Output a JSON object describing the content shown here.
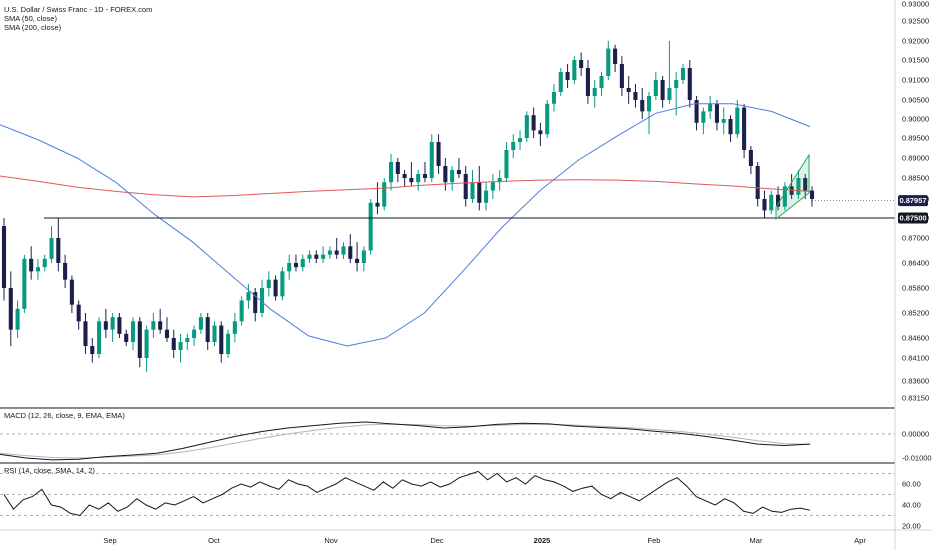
{
  "legend": {
    "title": "U.S. Dollar / Swiss Franc - 1D - FOREX.com",
    "sma50": "SMA (50, close)",
    "sma200": "SMA (200, close)"
  },
  "macd_label": "MACD (12, 26, close, 9, EMA, EMA)",
  "rsi_label": "RSI (14, close, SMA, 14, 2)",
  "price_tags": {
    "last": "0.87957",
    "level": "0.87500"
  },
  "colors": {
    "bull": "#089981",
    "bear": "#1c1f4a",
    "sma50": "#4c7fdc",
    "sma200": "#e05a5a",
    "channel": "#26a65b",
    "level": "#131722"
  },
  "chart_data": {
    "type": "candlestick",
    "x_ticks": [
      "Sep",
      "Oct",
      "Nov",
      "Dec",
      "2025",
      "Feb",
      "Mar",
      "Apr"
    ],
    "y_ticks": [
      "0.93000",
      "0.92500",
      "0.92000",
      "0.91500",
      "0.91000",
      "0.90500",
      "0.90000",
      "0.89500",
      "0.89000",
      "0.88500",
      "0.88000",
      "0.87500",
      "0.87000",
      "0.86400",
      "0.85800",
      "0.85200",
      "0.84600",
      "0.84100",
      "0.83600",
      "0.83150"
    ],
    "ylim": [
      0.8315,
      0.93
    ],
    "support_level": 0.875,
    "last_price": 0.87957,
    "candles": [
      [
        0.873,
        0.875,
        0.855,
        0.858
      ],
      [
        0.858,
        0.862,
        0.844,
        0.848
      ],
      [
        0.848,
        0.855,
        0.846,
        0.853
      ],
      [
        0.853,
        0.866,
        0.852,
        0.865
      ],
      [
        0.865,
        0.868,
        0.86,
        0.862
      ],
      [
        0.862,
        0.865,
        0.86,
        0.863
      ],
      [
        0.863,
        0.866,
        0.862,
        0.865
      ],
      [
        0.865,
        0.873,
        0.864,
        0.87
      ],
      [
        0.87,
        0.875,
        0.862,
        0.864
      ],
      [
        0.864,
        0.866,
        0.858,
        0.86
      ],
      [
        0.86,
        0.861,
        0.852,
        0.854
      ],
      [
        0.854,
        0.855,
        0.848,
        0.85
      ],
      [
        0.85,
        0.852,
        0.842,
        0.844
      ],
      [
        0.844,
        0.846,
        0.84,
        0.842
      ],
      [
        0.842,
        0.851,
        0.841,
        0.85
      ],
      [
        0.85,
        0.853,
        0.846,
        0.848
      ],
      [
        0.848,
        0.852,
        0.845,
        0.851
      ],
      [
        0.851,
        0.852,
        0.846,
        0.847
      ],
      [
        0.847,
        0.848,
        0.844,
        0.845
      ],
      [
        0.845,
        0.851,
        0.843,
        0.85
      ],
      [
        0.85,
        0.851,
        0.839,
        0.841
      ],
      [
        0.841,
        0.849,
        0.838,
        0.848
      ],
      [
        0.848,
        0.852,
        0.846,
        0.85
      ],
      [
        0.85,
        0.853,
        0.847,
        0.848
      ],
      [
        0.848,
        0.851,
        0.845,
        0.846
      ],
      [
        0.846,
        0.848,
        0.841,
        0.843
      ],
      [
        0.843,
        0.847,
        0.84,
        0.845
      ],
      [
        0.845,
        0.847,
        0.843,
        0.846
      ],
      [
        0.846,
        0.849,
        0.844,
        0.848
      ],
      [
        0.848,
        0.852,
        0.847,
        0.851
      ],
      [
        0.851,
        0.852,
        0.843,
        0.845
      ],
      [
        0.845,
        0.85,
        0.844,
        0.849
      ],
      [
        0.849,
        0.85,
        0.84,
        0.842
      ],
      [
        0.842,
        0.848,
        0.841,
        0.847
      ],
      [
        0.847,
        0.852,
        0.845,
        0.85
      ],
      [
        0.85,
        0.856,
        0.849,
        0.855
      ],
      [
        0.855,
        0.859,
        0.853,
        0.857
      ],
      [
        0.857,
        0.858,
        0.85,
        0.852
      ],
      [
        0.852,
        0.86,
        0.851,
        0.858
      ],
      [
        0.858,
        0.862,
        0.856,
        0.86
      ],
      [
        0.86,
        0.861,
        0.855,
        0.856
      ],
      [
        0.856,
        0.863,
        0.855,
        0.862
      ],
      [
        0.862,
        0.866,
        0.86,
        0.864
      ],
      [
        0.864,
        0.866,
        0.862,
        0.863
      ],
      [
        0.863,
        0.866,
        0.862,
        0.865
      ],
      [
        0.865,
        0.867,
        0.864,
        0.866
      ],
      [
        0.866,
        0.867,
        0.864,
        0.865
      ],
      [
        0.865,
        0.868,
        0.864,
        0.866
      ],
      [
        0.866,
        0.868,
        0.865,
        0.867
      ],
      [
        0.867,
        0.87,
        0.865,
        0.866
      ],
      [
        0.866,
        0.869,
        0.865,
        0.868
      ],
      [
        0.868,
        0.871,
        0.864,
        0.865
      ],
      [
        0.865,
        0.869,
        0.862,
        0.864
      ],
      [
        0.864,
        0.868,
        0.862,
        0.867
      ],
      [
        0.867,
        0.88,
        0.866,
        0.879
      ],
      [
        0.879,
        0.884,
        0.876,
        0.878
      ],
      [
        0.878,
        0.885,
        0.877,
        0.884
      ],
      [
        0.884,
        0.891,
        0.882,
        0.889
      ],
      [
        0.889,
        0.89,
        0.884,
        0.886
      ],
      [
        0.886,
        0.887,
        0.883,
        0.885
      ],
      [
        0.885,
        0.889,
        0.883,
        0.884
      ],
      [
        0.884,
        0.887,
        0.882,
        0.886
      ],
      [
        0.886,
        0.889,
        0.884,
        0.885
      ],
      [
        0.885,
        0.896,
        0.884,
        0.894
      ],
      [
        0.894,
        0.896,
        0.886,
        0.888
      ],
      [
        0.888,
        0.89,
        0.882,
        0.884
      ],
      [
        0.884,
        0.888,
        0.882,
        0.887
      ],
      [
        0.887,
        0.89,
        0.885,
        0.886
      ],
      [
        0.886,
        0.888,
        0.878,
        0.88
      ],
      [
        0.88,
        0.887,
        0.879,
        0.884
      ],
      [
        0.884,
        0.888,
        0.877,
        0.879
      ],
      [
        0.879,
        0.884,
        0.877,
        0.882
      ],
      [
        0.882,
        0.886,
        0.88,
        0.884
      ],
      [
        0.884,
        0.887,
        0.882,
        0.885
      ],
      [
        0.885,
        0.894,
        0.884,
        0.892
      ],
      [
        0.892,
        0.896,
        0.89,
        0.894
      ],
      [
        0.894,
        0.897,
        0.892,
        0.895
      ],
      [
        0.895,
        0.902,
        0.894,
        0.901
      ],
      [
        0.901,
        0.903,
        0.895,
        0.897
      ],
      [
        0.897,
        0.899,
        0.893,
        0.896
      ],
      [
        0.896,
        0.905,
        0.895,
        0.904
      ],
      [
        0.904,
        0.909,
        0.902,
        0.907
      ],
      [
        0.907,
        0.913,
        0.906,
        0.912
      ],
      [
        0.912,
        0.914,
        0.908,
        0.91
      ],
      [
        0.91,
        0.916,
        0.909,
        0.915
      ],
      [
        0.915,
        0.917,
        0.911,
        0.913
      ],
      [
        0.913,
        0.915,
        0.904,
        0.906
      ],
      [
        0.906,
        0.91,
        0.903,
        0.908
      ],
      [
        0.908,
        0.912,
        0.906,
        0.911
      ],
      [
        0.911,
        0.92,
        0.91,
        0.918
      ],
      [
        0.918,
        0.919,
        0.912,
        0.914
      ],
      [
        0.914,
        0.916,
        0.906,
        0.908
      ],
      [
        0.908,
        0.911,
        0.904,
        0.907
      ],
      [
        0.907,
        0.909,
        0.903,
        0.905
      ],
      [
        0.905,
        0.908,
        0.9,
        0.902
      ],
      [
        0.902,
        0.907,
        0.896,
        0.906
      ],
      [
        0.906,
        0.912,
        0.905,
        0.91
      ],
      [
        0.91,
        0.911,
        0.903,
        0.905
      ],
      [
        0.905,
        0.92,
        0.904,
        0.908
      ],
      [
        0.908,
        0.912,
        0.901,
        0.91
      ],
      [
        0.91,
        0.914,
        0.909,
        0.913
      ],
      [
        0.913,
        0.915,
        0.903,
        0.905
      ],
      [
        0.905,
        0.906,
        0.897,
        0.899
      ],
      [
        0.899,
        0.903,
        0.896,
        0.902
      ],
      [
        0.902,
        0.906,
        0.9,
        0.904
      ],
      [
        0.904,
        0.905,
        0.897,
        0.899
      ],
      [
        0.899,
        0.903,
        0.896,
        0.9
      ],
      [
        0.9,
        0.901,
        0.894,
        0.896
      ],
      [
        0.896,
        0.905,
        0.895,
        0.903
      ],
      [
        0.903,
        0.904,
        0.89,
        0.892
      ],
      [
        0.892,
        0.893,
        0.886,
        0.888
      ],
      [
        0.888,
        0.889,
        0.878,
        0.88
      ],
      [
        0.88,
        0.882,
        0.875,
        0.877
      ],
      [
        0.877,
        0.882,
        0.876,
        0.881
      ],
      [
        0.881,
        0.883,
        0.877,
        0.878
      ],
      [
        0.878,
        0.884,
        0.877,
        0.883
      ],
      [
        0.883,
        0.886,
        0.88,
        0.881
      ],
      [
        0.881,
        0.887,
        0.88,
        0.885
      ],
      [
        0.885,
        0.886,
        0.88,
        0.882
      ],
      [
        0.882,
        0.883,
        0.878,
        0.88
      ]
    ],
    "sma50": [
      0.8985,
      0.8945,
      0.89,
      0.884,
      0.876,
      0.869,
      0.861,
      0.853,
      0.8465,
      0.844,
      0.846,
      0.852,
      0.862,
      0.8725,
      0.882,
      0.8895,
      0.8955,
      0.9015,
      0.904,
      0.904,
      0.902,
      0.898
    ],
    "sma200": [
      0.8855,
      0.8842,
      0.8828,
      0.8818,
      0.881,
      0.8805,
      0.8808,
      0.8813,
      0.8818,
      0.8822,
      0.8826,
      0.8833,
      0.8838,
      0.8842,
      0.8845,
      0.8846,
      0.8845,
      0.8842,
      0.8836,
      0.8831,
      0.8824,
      0.8818
    ],
    "macd": {
      "label": "MACD (12, 26, close, 9, EMA, EMA)",
      "ylim": [
        -0.012,
        0.006
      ],
      "ticks": [
        "0.00000",
        "-0.01000"
      ],
      "macd_line": [
        -0.0085,
        -0.01,
        -0.0108,
        -0.0105,
        -0.0095,
        -0.0088,
        -0.008,
        -0.006,
        -0.0035,
        -0.001,
        0.001,
        0.0025,
        0.0035,
        0.0045,
        0.005,
        0.0042,
        0.0035,
        0.0025,
        0.003,
        0.004,
        0.0045,
        0.0042,
        0.0033,
        0.0027,
        0.0022,
        0.0012,
        0.0003,
        -0.001,
        -0.0025,
        -0.0042,
        -0.0048,
        -0.0042
      ],
      "signal_line": [
        -0.008,
        -0.009,
        -0.0098,
        -0.01,
        -0.0097,
        -0.0092,
        -0.0087,
        -0.0075,
        -0.0058,
        -0.0038,
        -0.0018,
        0.0,
        0.0015,
        0.0028,
        0.0038,
        0.0041,
        0.0039,
        0.0034,
        0.0033,
        0.0036,
        0.004,
        0.0041,
        0.0037,
        0.0032,
        0.0027,
        0.0019,
        0.0011,
        0.0,
        -0.0013,
        -0.0028,
        -0.004,
        -0.0043
      ]
    },
    "rsi": {
      "label": "RSI (14, close, SMA, 14, 2)",
      "ylim": [
        20,
        75
      ],
      "ticks": [
        "60.00",
        "40.00",
        "20.00"
      ],
      "bands": [
        70,
        50,
        30
      ],
      "values": [
        50,
        36,
        45,
        48,
        55,
        40,
        38,
        32,
        30,
        40,
        36,
        42,
        34,
        38,
        46,
        40,
        36,
        42,
        40,
        44,
        48,
        42,
        46,
        50,
        56,
        60,
        57,
        62,
        58,
        55,
        64,
        60,
        58,
        52,
        56,
        60,
        66,
        62,
        58,
        54,
        62,
        56,
        64,
        60,
        58,
        62,
        57,
        60,
        66,
        69,
        72,
        64,
        70,
        62,
        66,
        60,
        68,
        64,
        62,
        58,
        53,
        56,
        58,
        50,
        46,
        52,
        48,
        44,
        50,
        56,
        62,
        66,
        58,
        48,
        44,
        40,
        46,
        42,
        34,
        32,
        38,
        34,
        33,
        36,
        37,
        35
      ]
    }
  }
}
